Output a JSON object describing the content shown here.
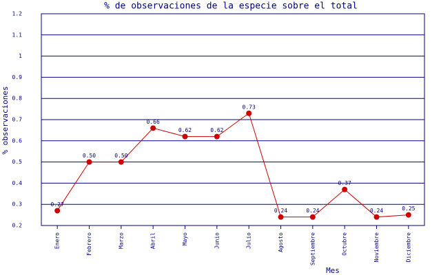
{
  "chart_data": {
    "type": "line",
    "title": "% de observaciones de la especie sobre el total",
    "x_label": "Mes",
    "y_label": "% observaciones",
    "categories": [
      "Enero",
      "Febrero",
      "Marzo",
      "Abril",
      "Mayo",
      "Junio",
      "Julio",
      "Agosto",
      "Septiembre",
      "Octubre",
      "Noviembre",
      "Diciembre"
    ],
    "series": [
      {
        "name": "% observaciones",
        "color": "#cc0000",
        "values": [
          0.27,
          0.5,
          0.5,
          0.66,
          0.62,
          0.62,
          0.73,
          0.24,
          0.24,
          0.37,
          0.24,
          0.25
        ],
        "value_labels": [
          "0.27",
          "0.50",
          "0.50",
          "0.66",
          "0.62",
          "0.62",
          "0.73",
          "0.24",
          "0.24",
          "0.37",
          "0.24",
          "0.25"
        ]
      }
    ],
    "ylim": [
      0.2,
      1.2
    ],
    "yticks": [
      0.2,
      0.3,
      0.4,
      0.5,
      0.6,
      0.7,
      0.8,
      0.9,
      1,
      1.1,
      1.2
    ],
    "grid": true
  }
}
